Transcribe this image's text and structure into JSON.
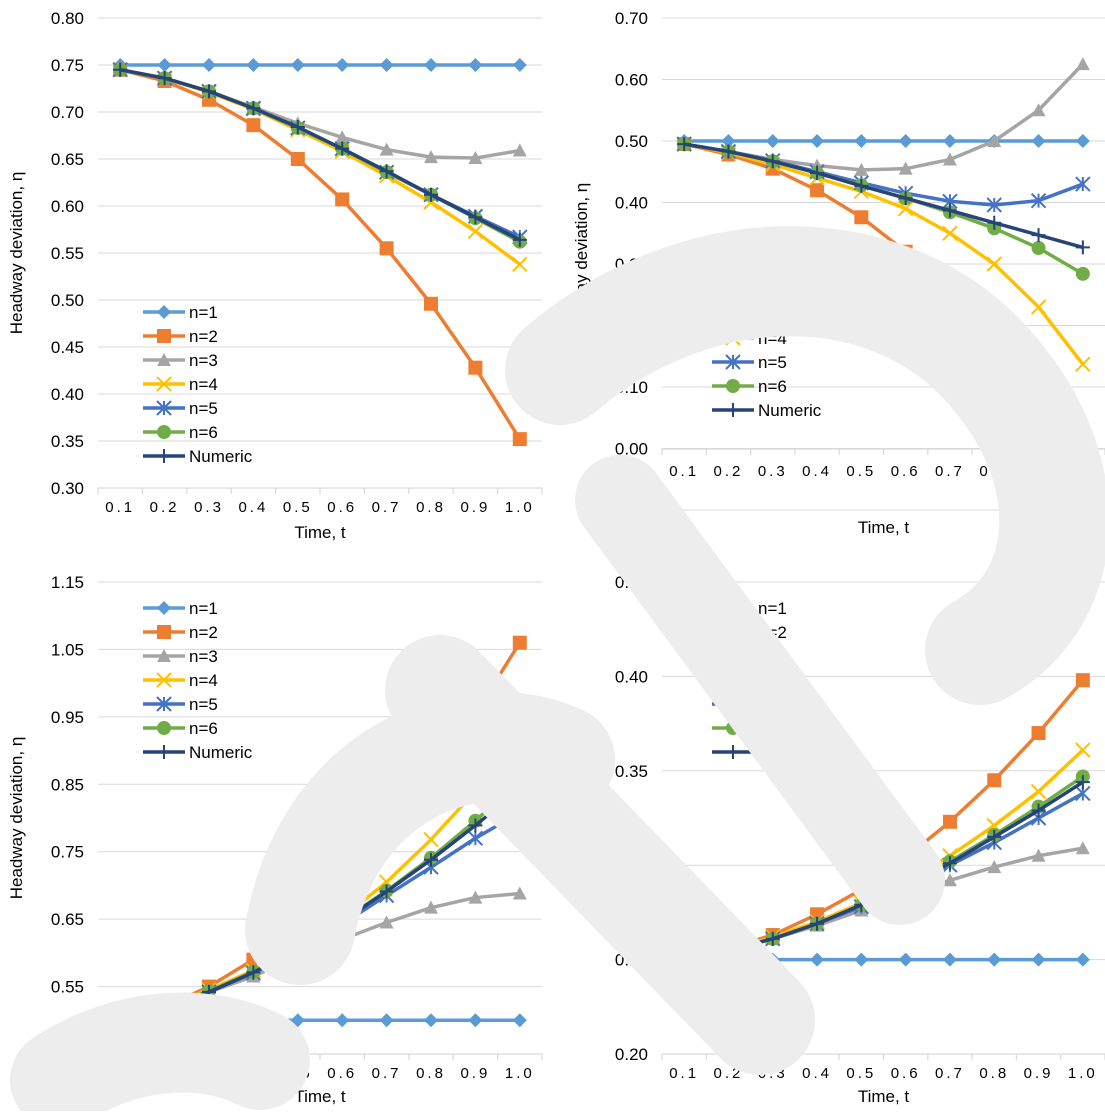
{
  "colors": {
    "n1": "#5B9BD5",
    "n2": "#ED7D31",
    "n3": "#A5A5A5",
    "n4": "#FFC000",
    "n5": "#4472C4",
    "n6": "#70AD47",
    "numeric": "#264478",
    "grid": "#D9D9D9",
    "text": "#000000",
    "watermark": "#EDEDED"
  },
  "chart_data": [
    {
      "type": "line",
      "title": "",
      "xlabel": "Time, t",
      "ylabel": "Headway deviation, η",
      "categories": [
        "0.1",
        "0.2",
        "0.3",
        "0.4",
        "0.5",
        "0.6",
        "0.7",
        "0.8",
        "0.9",
        "1.0"
      ],
      "yticks": [
        "0.30",
        "0.35",
        "0.40",
        "0.45",
        "0.50",
        "0.55",
        "0.60",
        "0.65",
        "0.70",
        "0.75",
        "0.80"
      ],
      "ylim": [
        0.3,
        0.8
      ],
      "grid": "horizontal",
      "legend_position": "bottom-left",
      "series": [
        {
          "name": "n=1",
          "marker": "diamond",
          "color_key": "n1",
          "values": [
            0.75,
            0.75,
            0.75,
            0.75,
            0.75,
            0.75,
            0.75,
            0.75,
            0.75,
            0.75
          ]
        },
        {
          "name": "n=2",
          "marker": "square",
          "color_key": "n2",
          "values": [
            0.745,
            0.733,
            0.713,
            0.686,
            0.65,
            0.607,
            0.555,
            0.496,
            0.428,
            0.352
          ]
        },
        {
          "name": "n=3",
          "marker": "triangle",
          "color_key": "n3",
          "values": [
            0.745,
            0.736,
            0.722,
            0.705,
            0.688,
            0.673,
            0.66,
            0.652,
            0.651,
            0.659
          ]
        },
        {
          "name": "n=4",
          "marker": "x",
          "color_key": "n4",
          "values": [
            0.745,
            0.736,
            0.721,
            0.703,
            0.681,
            0.658,
            0.632,
            0.604,
            0.573,
            0.538
          ]
        },
        {
          "name": "n=5",
          "marker": "star",
          "color_key": "n5",
          "values": [
            0.745,
            0.736,
            0.722,
            0.704,
            0.683,
            0.661,
            0.636,
            0.612,
            0.589,
            0.567
          ]
        },
        {
          "name": "n=6",
          "marker": "circle",
          "color_key": "n6",
          "values": [
            0.745,
            0.736,
            0.722,
            0.704,
            0.683,
            0.661,
            0.636,
            0.612,
            0.587,
            0.562
          ]
        },
        {
          "name": "Numeric",
          "marker": "plus",
          "color_key": "numeric",
          "values": [
            0.745,
            0.736,
            0.722,
            0.704,
            0.684,
            0.661,
            0.637,
            0.612,
            0.588,
            0.564
          ]
        }
      ]
    },
    {
      "type": "line",
      "title": "",
      "xlabel": "Time, t",
      "ylabel": "Headway deviation, η",
      "categories": [
        "0.1",
        "0.2",
        "0.3",
        "0.4",
        "0.5",
        "0.6",
        "0.7",
        "0.8",
        "0.9",
        "1.0"
      ],
      "yticks": [
        "-0.10",
        "0.00",
        "0.10",
        "0.20",
        "0.30",
        "0.40",
        "0.50",
        "0.60",
        "0.70"
      ],
      "ylim": [
        -0.1,
        0.7
      ],
      "x_axis_at": 0,
      "grid": "horizontal",
      "legend_position": "bottom-left",
      "series": [
        {
          "name": "n=1",
          "marker": "diamond",
          "color_key": "n1",
          "values": [
            0.5,
            0.5,
            0.5,
            0.5,
            0.5,
            0.5,
            0.5,
            0.5,
            0.5,
            0.5
          ]
        },
        {
          "name": "n=2",
          "marker": "square",
          "color_key": "n2",
          "values": [
            0.495,
            0.478,
            0.455,
            0.42,
            0.376,
            0.32,
            0.255,
            0.18,
            0.095,
            0.0
          ]
        },
        {
          "name": "n=3",
          "marker": "triangle",
          "color_key": "n3",
          "values": [
            0.495,
            0.483,
            0.47,
            0.46,
            0.453,
            0.455,
            0.47,
            0.5,
            0.55,
            0.625
          ]
        },
        {
          "name": "n=4",
          "marker": "x",
          "color_key": "n4",
          "values": [
            0.495,
            0.481,
            0.462,
            0.44,
            0.418,
            0.39,
            0.35,
            0.3,
            0.23,
            0.137
          ]
        },
        {
          "name": "n=5",
          "marker": "star",
          "color_key": "n5",
          "values": [
            0.495,
            0.483,
            0.468,
            0.45,
            0.432,
            0.415,
            0.402,
            0.396,
            0.403,
            0.43
          ]
        },
        {
          "name": "n=6",
          "marker": "circle",
          "color_key": "n6",
          "values": [
            0.495,
            0.483,
            0.467,
            0.448,
            0.428,
            0.407,
            0.384,
            0.358,
            0.326,
            0.284
          ]
        },
        {
          "name": "Numeric",
          "marker": "plus",
          "color_key": "numeric",
          "values": [
            0.495,
            0.483,
            0.467,
            0.448,
            0.427,
            0.407,
            0.387,
            0.367,
            0.347,
            0.327
          ]
        }
      ]
    },
    {
      "type": "line",
      "title": "",
      "xlabel": "Time, t",
      "ylabel": "Headway deviation, η",
      "categories": [
        "0.1",
        "0.2",
        "0.3",
        "0.4",
        "0.5",
        "0.6",
        "0.7",
        "0.8",
        "0.9",
        "1.0"
      ],
      "yticks": [
        "0.45",
        "0.55",
        "0.65",
        "0.75",
        "0.85",
        "0.95",
        "1.05",
        "1.15"
      ],
      "ylim": [
        0.45,
        1.15
      ],
      "grid": "horizontal",
      "legend_position": "top-left",
      "series": [
        {
          "name": "n=1",
          "marker": "diamond",
          "color_key": "n1",
          "values": [
            0.5,
            0.5,
            0.5,
            0.5,
            0.5,
            0.5,
            0.5,
            0.5,
            0.5,
            0.5
          ]
        },
        {
          "name": "n=2",
          "marker": "square",
          "color_key": "n2",
          "values": [
            0.505,
            0.52,
            0.55,
            0.59,
            0.64,
            0.702,
            0.776,
            0.86,
            0.955,
            1.06
          ]
        },
        {
          "name": "n=3",
          "marker": "triangle",
          "color_key": "n3",
          "values": [
            0.505,
            0.52,
            0.542,
            0.565,
            0.595,
            0.62,
            0.645,
            0.667,
            0.682,
            0.688
          ]
        },
        {
          "name": "n=4",
          "marker": "x",
          "color_key": "n4",
          "values": [
            0.505,
            0.52,
            0.545,
            0.574,
            0.61,
            0.652,
            0.705,
            0.768,
            0.84,
            0.925
          ]
        },
        {
          "name": "n=5",
          "marker": "star",
          "color_key": "n5",
          "values": [
            0.505,
            0.52,
            0.542,
            0.57,
            0.603,
            0.643,
            0.685,
            0.727,
            0.77,
            0.808
          ]
        },
        {
          "name": "n=6",
          "marker": "circle",
          "color_key": "n6",
          "values": [
            0.505,
            0.52,
            0.543,
            0.572,
            0.607,
            0.648,
            0.692,
            0.741,
            0.796,
            0.855
          ]
        },
        {
          "name": "Numeric",
          "marker": "plus",
          "color_key": "numeric",
          "values": [
            0.505,
            0.52,
            0.542,
            0.571,
            0.606,
            0.647,
            0.691,
            0.738,
            0.789,
            0.843
          ]
        }
      ]
    },
    {
      "type": "line",
      "title": "",
      "xlabel": "Time, t",
      "ylabel": "Headway deviation, η",
      "categories": [
        "0.1",
        "0.2",
        "0.3",
        "0.4",
        "0.5",
        "0.6",
        "0.7",
        "0.8",
        "0.9",
        "1.0"
      ],
      "yticks": [
        "0.20",
        "0.25",
        "0.30",
        "0.35",
        "0.40",
        "0.45"
      ],
      "ylim": [
        0.2,
        0.45
      ],
      "grid": "horizontal",
      "legend_position": "top-left",
      "series": [
        {
          "name": "n=1",
          "marker": "diamond",
          "color_key": "n1",
          "values": [
            0.25,
            0.25,
            0.25,
            0.25,
            0.25,
            0.25,
            0.25,
            0.25,
            0.25,
            0.25
          ]
        },
        {
          "name": "n=2",
          "marker": "square",
          "color_key": "n2",
          "values": [
            0.251,
            0.256,
            0.263,
            0.274,
            0.287,
            0.304,
            0.323,
            0.345,
            0.37,
            0.398
          ]
        },
        {
          "name": "n=3",
          "marker": "triangle",
          "color_key": "n3",
          "values": [
            0.251,
            0.255,
            0.261,
            0.268,
            0.276,
            0.284,
            0.292,
            0.299,
            0.305,
            0.309
          ]
        },
        {
          "name": "n=4",
          "marker": "x",
          "color_key": "n4",
          "values": [
            0.251,
            0.255,
            0.262,
            0.27,
            0.28,
            0.291,
            0.305,
            0.321,
            0.339,
            0.361
          ]
        },
        {
          "name": "n=5",
          "marker": "star",
          "color_key": "n5",
          "values": [
            0.251,
            0.255,
            0.261,
            0.269,
            0.278,
            0.289,
            0.3,
            0.312,
            0.325,
            0.338
          ]
        },
        {
          "name": "n=6",
          "marker": "circle",
          "color_key": "n6",
          "values": [
            0.251,
            0.255,
            0.261,
            0.269,
            0.279,
            0.29,
            0.302,
            0.316,
            0.331,
            0.347
          ]
        },
        {
          "name": "Numeric",
          "marker": "plus",
          "color_key": "numeric",
          "values": [
            0.251,
            0.255,
            0.261,
            0.269,
            0.279,
            0.289,
            0.301,
            0.315,
            0.329,
            0.344
          ]
        }
      ]
    }
  ]
}
